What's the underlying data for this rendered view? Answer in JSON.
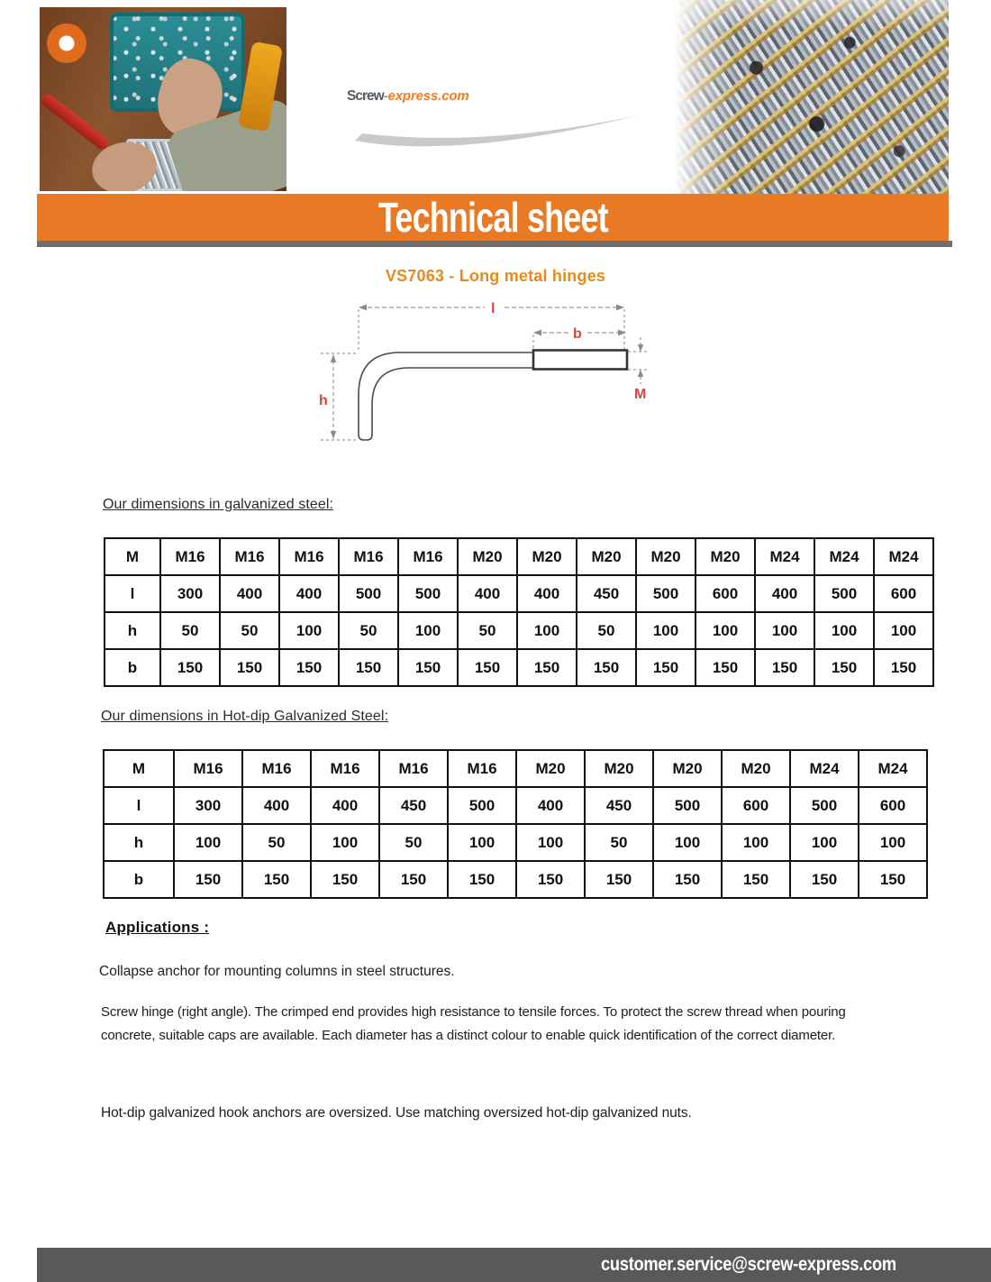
{
  "logo": {
    "primary": "Screw",
    "secondary": "-express.com"
  },
  "banner": {
    "title": "Technical sheet"
  },
  "product_title": "VS7063 - Long metal hinges",
  "diagram": {
    "label_length": "l",
    "label_thread": "b",
    "label_height": "h",
    "label_diameter": "M"
  },
  "tables": {
    "galvanized": {
      "caption": "Our dimensions in galvanized steel:",
      "rows": [
        {
          "header": "M",
          "cells": [
            "M16",
            "M16",
            "M16",
            "M16",
            "M16",
            "M20",
            "M20",
            "M20",
            "M20",
            "M20",
            "M24",
            "M24",
            "M24"
          ]
        },
        {
          "header": "l",
          "cells": [
            "300",
            "400",
            "400",
            "500",
            "500",
            "400",
            "400",
            "450",
            "500",
            "600",
            "400",
            "500",
            "600"
          ]
        },
        {
          "header": "h",
          "cells": [
            "50",
            "50",
            "100",
            "50",
            "100",
            "50",
            "100",
            "50",
            "100",
            "100",
            "100",
            "100",
            "100"
          ]
        },
        {
          "header": "b",
          "cells": [
            "150",
            "150",
            "150",
            "150",
            "150",
            "150",
            "150",
            "150",
            "150",
            "150",
            "150",
            "150",
            "150"
          ]
        }
      ]
    },
    "hot_dip": {
      "caption": "Our dimensions in Hot-dip Galvanized Steel:",
      "rows": [
        {
          "header": "M",
          "cells": [
            "M16",
            "M16",
            "M16",
            "M16",
            "M16",
            "M20",
            "M20",
            "M20",
            "M20",
            "M24",
            "M24"
          ]
        },
        {
          "header": "l",
          "cells": [
            "300",
            "400",
            "400",
            "450",
            "500",
            "400",
            "450",
            "500",
            "600",
            "500",
            "600"
          ]
        },
        {
          "header": "h",
          "cells": [
            "100",
            "50",
            "100",
            "50",
            "100",
            "100",
            "50",
            "100",
            "100",
            "100",
            "100"
          ]
        },
        {
          "header": "b",
          "cells": [
            "150",
            "150",
            "150",
            "150",
            "150",
            "150",
            "150",
            "150",
            "150",
            "150",
            "150"
          ]
        }
      ]
    }
  },
  "applications": {
    "heading": "Applications :",
    "paragraph_1": "Collapse anchor for mounting columns in steel structures.",
    "paragraph_2": "Screw hinge (right angle). The crimped end provides high resistance to tensile forces. To protect the screw thread when pouring concrete, suitable caps are available. Each diameter has a distinct colour to enable quick identification of the correct diameter.",
    "paragraph_3": "Hot-dip galvanized hook anchors are oversized. Use matching oversized hot-dip galvanized nuts."
  },
  "footer": {
    "email": "customer.service@screw-express.com"
  },
  "colors": {
    "banner_orange": "#E87A25",
    "title_orange": "#E8891B",
    "logo_gray": "#58595B",
    "logo_orange": "#F47B20",
    "diagram_red": "#D9453A",
    "footer_gray": "#595959",
    "strip_gray": "#6F6F6F"
  }
}
